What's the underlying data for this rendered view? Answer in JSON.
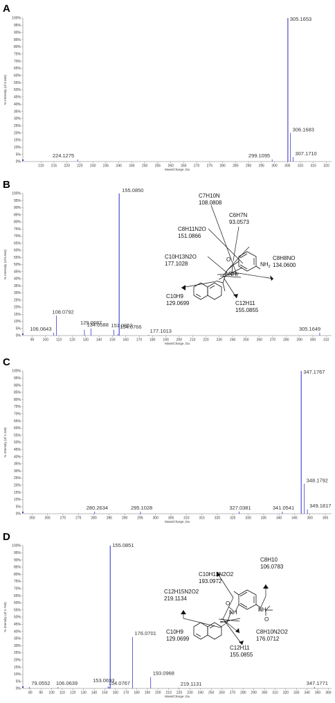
{
  "chart_data": [
    {
      "type": "bar",
      "panel": "A",
      "xlabel": "Mass/Charge, Da",
      "ylabel": "% Intensity (of 3.3e5)",
      "xlim": [
        203,
        322
      ],
      "ylim": [
        0,
        100
      ],
      "xticks": [
        210,
        215,
        220,
        225,
        230,
        235,
        240,
        245,
        250,
        255,
        260,
        265,
        270,
        275,
        280,
        285,
        290,
        295,
        300,
        305,
        310,
        315,
        320
      ],
      "yticks": [
        0,
        5,
        10,
        15,
        20,
        25,
        30,
        35,
        40,
        45,
        50,
        55,
        60,
        65,
        70,
        75,
        80,
        85,
        90,
        95,
        100
      ],
      "peaks": [
        {
          "x": 224.1275,
          "y": 1.5,
          "label": "224.1275"
        },
        {
          "x": 299.1095,
          "y": 1.5,
          "label": "299.1095"
        },
        {
          "x": 305.1653,
          "y": 100,
          "label": "305.1653"
        },
        {
          "x": 306.1683,
          "y": 20,
          "label": "306.1683"
        },
        {
          "x": 307.171,
          "y": 3,
          "label": "307.1710"
        }
      ]
    },
    {
      "type": "bar",
      "panel": "B",
      "xlabel": "Mass/Charge, Da",
      "ylabel": "% Intensity (of 6.9e4)",
      "xlim": [
        83,
        314
      ],
      "ylim": [
        0,
        100
      ],
      "xticks": [
        90,
        100,
        110,
        120,
        130,
        140,
        150,
        160,
        170,
        180,
        190,
        200,
        210,
        220,
        230,
        240,
        250,
        260,
        270,
        280,
        290,
        300,
        310
      ],
      "yticks": [
        0,
        5,
        10,
        15,
        20,
        25,
        30,
        35,
        40,
        45,
        50,
        55,
        60,
        65,
        70,
        75,
        80,
        85,
        90,
        95,
        100
      ],
      "peaks": [
        {
          "x": 106.0643,
          "y": 2,
          "label": "106.0643"
        },
        {
          "x": 108.0792,
          "y": 14,
          "label": "108.0792"
        },
        {
          "x": 129.0687,
          "y": 4,
          "label": "129.0687"
        },
        {
          "x": 134.0588,
          "y": 5,
          "label": "134.0588"
        },
        {
          "x": 151.0852,
          "y": 4,
          "label": "151.0852"
        },
        {
          "x": 154.0766,
          "y": 1,
          "label": "154.0766"
        },
        {
          "x": 155.085,
          "y": 100,
          "label": "155.0850"
        },
        {
          "x": 177.1013,
          "y": 0.5,
          "label": "177.1013"
        },
        {
          "x": 305.1649,
          "y": 2,
          "label": "305.1649"
        }
      ],
      "structure": {
        "fragments": [
          {
            "formula": "C7H10N",
            "mass": "108.0808"
          },
          {
            "formula": "C6H7N",
            "mass": "93.0573"
          },
          {
            "formula": "C8H11N2O",
            "mass": "151.0866"
          },
          {
            "formula": "C10H13N2O",
            "mass": "177.1028"
          },
          {
            "formula": "C8H8NO",
            "mass": "134.0600"
          },
          {
            "formula": "C10H9",
            "mass": "129.0699"
          },
          {
            "formula": "C12H11",
            "mass": "155.0855"
          }
        ],
        "atoms": {
          "o": "O",
          "nh": "NH",
          "nh2": "NH",
          "nh2_sub": "2"
        }
      }
    },
    {
      "type": "bar",
      "panel": "C",
      "xlabel": "Mass/Charge, Da",
      "ylabel": "% Intensity (of 2.2e5)",
      "xlim": [
        257,
        357
      ],
      "ylim": [
        0,
        100
      ],
      "xticks": [
        260,
        265,
        270,
        275,
        280,
        285,
        290,
        295,
        300,
        305,
        310,
        315,
        320,
        325,
        330,
        335,
        340,
        345,
        350,
        355
      ],
      "yticks": [
        0,
        5,
        10,
        15,
        20,
        25,
        30,
        35,
        40,
        45,
        50,
        55,
        60,
        65,
        70,
        75,
        80,
        85,
        90,
        95,
        100
      ],
      "peaks": [
        {
          "x": 280.2634,
          "y": 1.5,
          "label": "280.2634"
        },
        {
          "x": 295.1028,
          "y": 1.5,
          "label": "295.1028"
        },
        {
          "x": 327.0381,
          "y": 1.5,
          "label": "327.0381"
        },
        {
          "x": 341.0541,
          "y": 1.5,
          "label": "341.0541"
        },
        {
          "x": 347.1767,
          "y": 100,
          "label": "347.1767"
        },
        {
          "x": 348.1792,
          "y": 21,
          "label": "348.1792"
        },
        {
          "x": 349.1817,
          "y": 3,
          "label": "349.1817"
        }
      ]
    },
    {
      "type": "bar",
      "panel": "D",
      "xlabel": "Mass/Charge, Da",
      "ylabel": "% Intensity (of 2.7e5)",
      "xlim": [
        73,
        363
      ],
      "ylim": [
        0,
        100
      ],
      "xticks": [
        80,
        90,
        100,
        110,
        120,
        130,
        140,
        150,
        160,
        170,
        180,
        190,
        200,
        210,
        220,
        230,
        240,
        250,
        260,
        270,
        280,
        290,
        300,
        310,
        320,
        330,
        340,
        350,
        360
      ],
      "yticks": [
        0,
        5,
        10,
        15,
        20,
        25,
        30,
        35,
        40,
        45,
        50,
        55,
        60,
        65,
        70,
        75,
        80,
        85,
        90,
        95,
        100
      ],
      "peaks": [
        {
          "x": 79.0552,
          "y": 1,
          "label": "79.0552"
        },
        {
          "x": 106.0639,
          "y": 1,
          "label": "106.0639"
        },
        {
          "x": 153.0693,
          "y": 1.5,
          "label": "153.0693"
        },
        {
          "x": 154.0767,
          "y": 1,
          "label": "154.0767"
        },
        {
          "x": 155.0851,
          "y": 100,
          "label": "155.0851"
        },
        {
          "x": 176.0701,
          "y": 36,
          "label": "176.0701"
        },
        {
          "x": 193.0968,
          "y": 8,
          "label": "193.0968"
        },
        {
          "x": 219.1131,
          "y": 0.5,
          "label": "219.1131"
        },
        {
          "x": 347.1771,
          "y": 1,
          "label": "347.1771"
        }
      ],
      "structure": {
        "fragments": [
          {
            "formula": "C8H10",
            "mass": "106.0783"
          },
          {
            "formula": "C10H13N2O2",
            "mass": "193.0972"
          },
          {
            "formula": "C12H15N2O2",
            "mass": "219.1134"
          },
          {
            "formula": "C10H9",
            "mass": "129.0699"
          },
          {
            "formula": "C12H11",
            "mass": "155.0855"
          },
          {
            "formula": "C8H10N2O2",
            "mass": "176.0712"
          }
        ],
        "atoms": {
          "o": "O",
          "nh1": "NH",
          "nh2": "NH"
        }
      }
    }
  ],
  "colors": {
    "bar": "#3a3acd",
    "axis": "#777777",
    "arrow": "#111111"
  }
}
